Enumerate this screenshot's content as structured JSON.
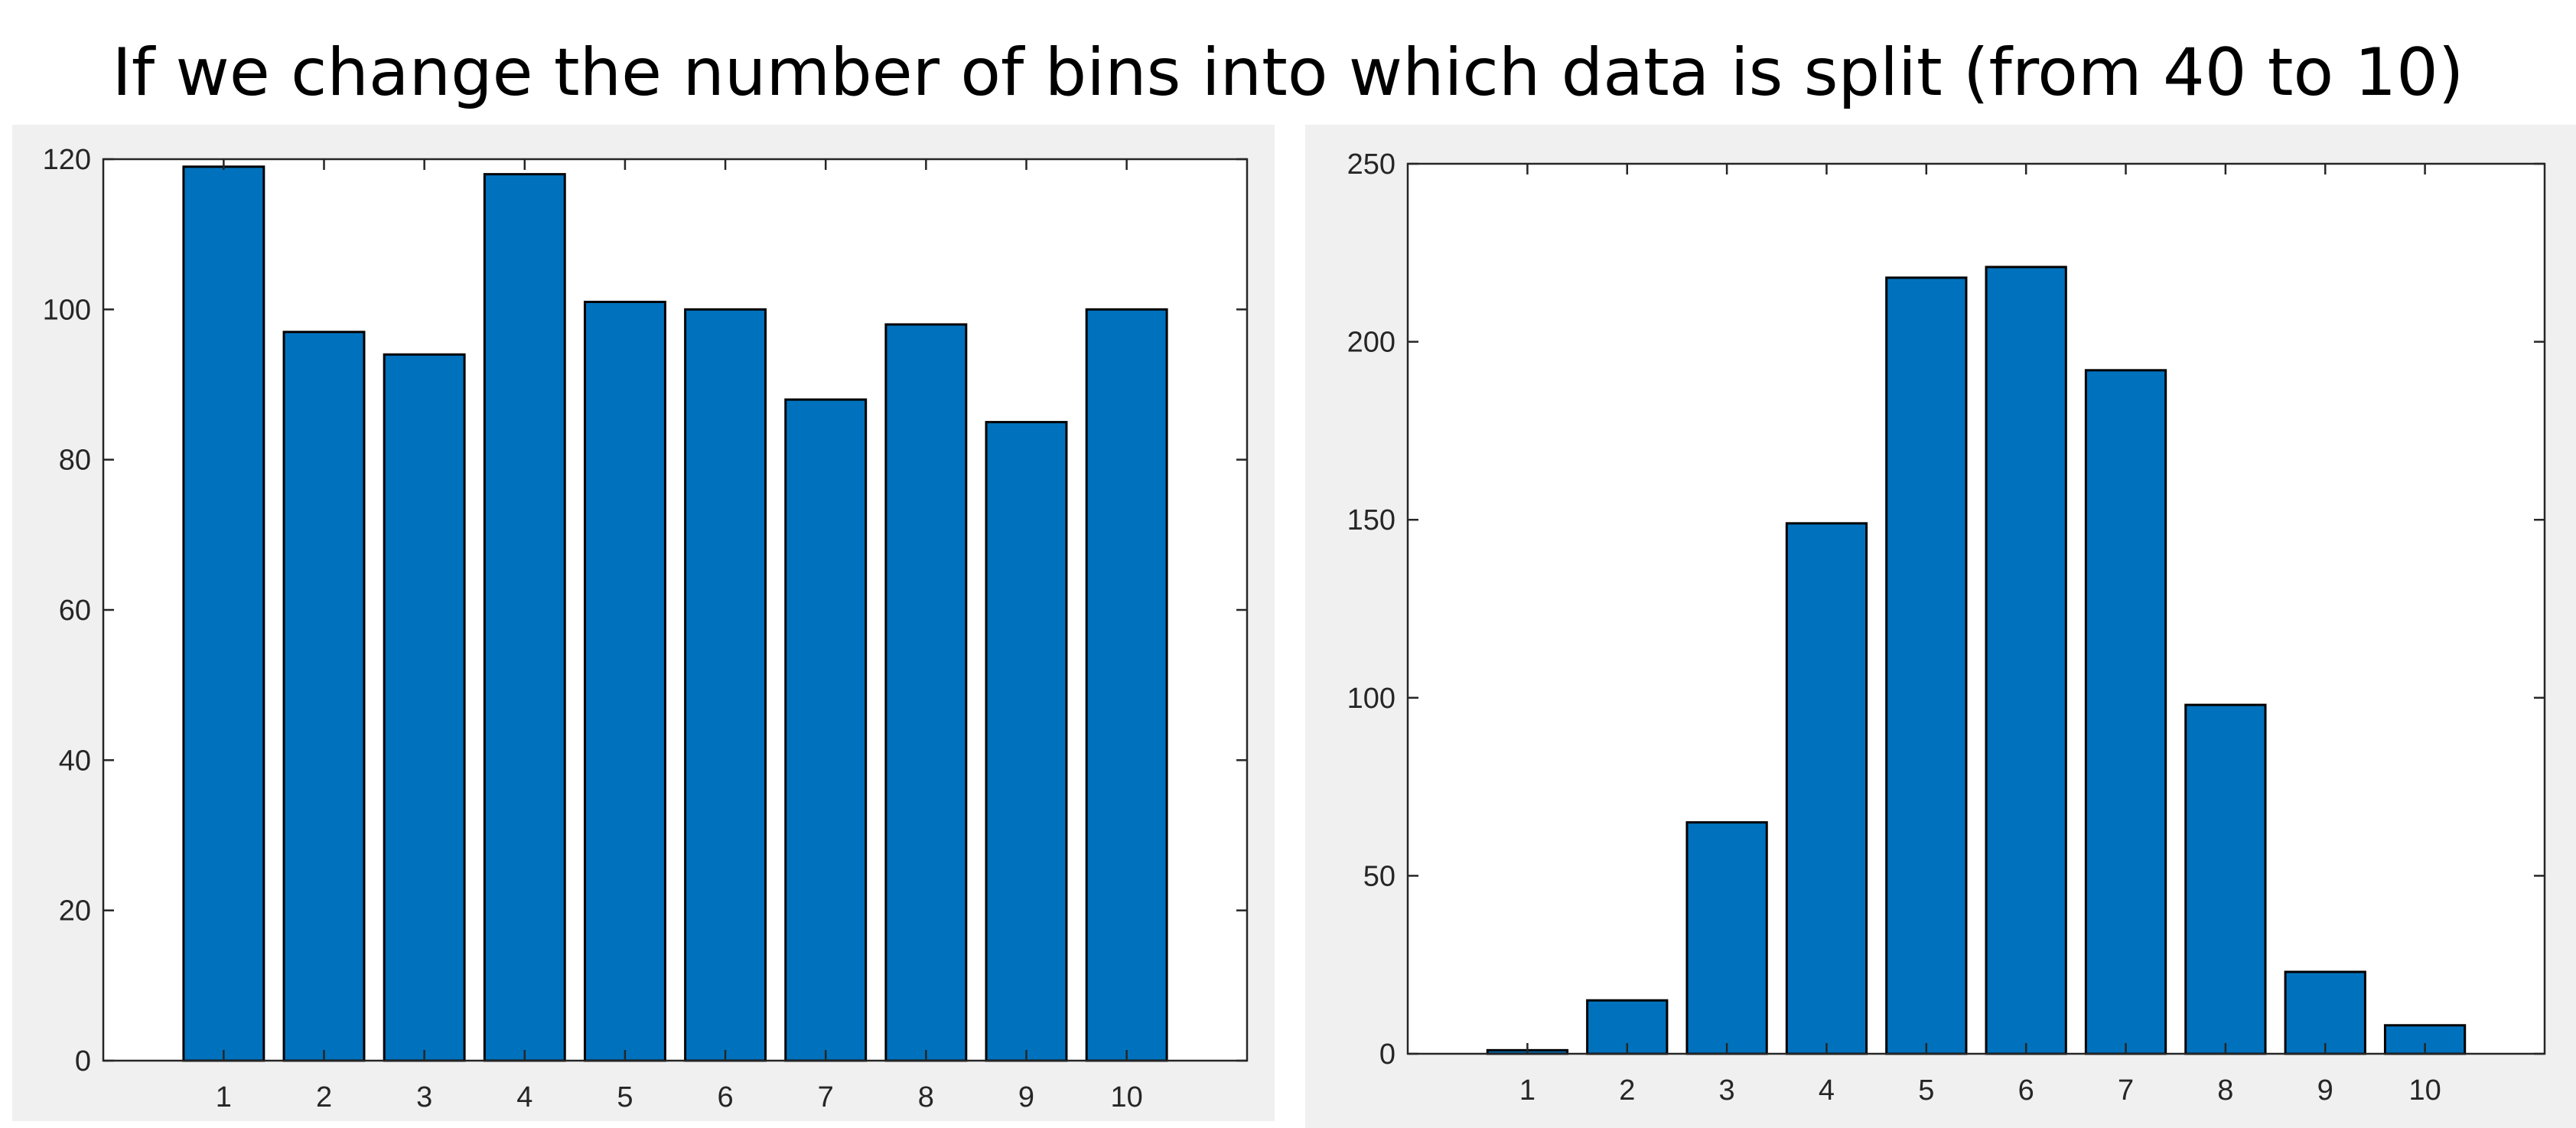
{
  "page": {
    "title": "If we change the number of bins into which data is split (from 40 to 10)"
  },
  "chart_data": [
    {
      "type": "bar",
      "categories": [
        "1",
        "2",
        "3",
        "4",
        "5",
        "6",
        "7",
        "8",
        "9",
        "10"
      ],
      "values": [
        119,
        97,
        94,
        118,
        101,
        100,
        88,
        98,
        85,
        100
      ],
      "ylim": [
        0,
        120
      ],
      "yticks": [
        0,
        20,
        40,
        60,
        80,
        100,
        120
      ],
      "xlim": [
        -0.2,
        11.2
      ],
      "bar_color": "#0072bd",
      "grid": false,
      "title": "",
      "xlabel": "",
      "ylabel": ""
    },
    {
      "type": "bar",
      "categories": [
        "1",
        "2",
        "3",
        "4",
        "5",
        "6",
        "7",
        "8",
        "9",
        "10"
      ],
      "values": [
        1,
        15,
        65,
        149,
        218,
        221,
        192,
        98,
        23,
        8
      ],
      "ylim": [
        0,
        250
      ],
      "yticks": [
        0,
        50,
        100,
        150,
        200,
        250
      ],
      "xlim": [
        -0.2,
        11.2
      ],
      "bar_color": "#0072bd",
      "grid": false,
      "title": "",
      "xlabel": "",
      "ylabel": ""
    }
  ]
}
